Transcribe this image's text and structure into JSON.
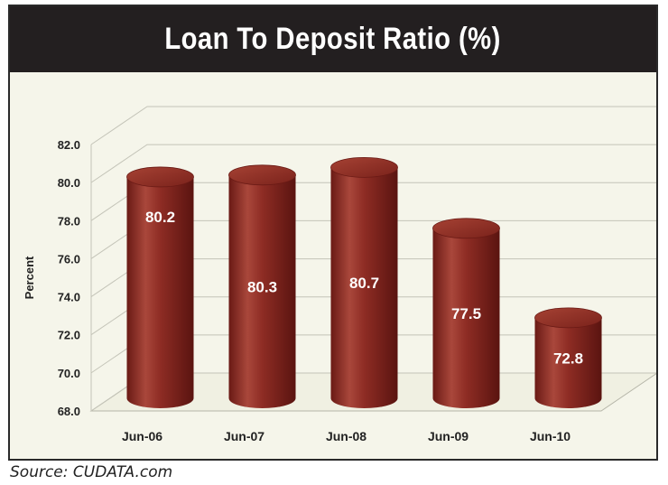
{
  "chart_data": {
    "type": "bar",
    "style": "3d-cylinder",
    "title": "Loan To Deposit Ratio (%)",
    "ylabel": "Percent",
    "xlabel": "",
    "categories": [
      "Jun-06",
      "Jun-07",
      "Jun-08",
      "Jun-09",
      "Jun-10"
    ],
    "values": [
      80.2,
      80.3,
      80.7,
      77.5,
      72.8
    ],
    "data_labels": [
      "80.2",
      "80.3",
      "80.7",
      "77.5",
      "72.8"
    ],
    "ylim": [
      68.0,
      82.0
    ],
    "yticks": [
      "68.0",
      "70.0",
      "72.0",
      "74.0",
      "76.0",
      "78.0",
      "80.0",
      "82.0"
    ],
    "grid": true,
    "legend": "none",
    "colors": {
      "bar": "#8e2c24",
      "bar_light": "#b4574a",
      "bar_dark": "#5e1612",
      "title_bg": "#231f20",
      "plot_bg": "#f5f5ea"
    }
  },
  "source": "Source: CUDATA.com"
}
